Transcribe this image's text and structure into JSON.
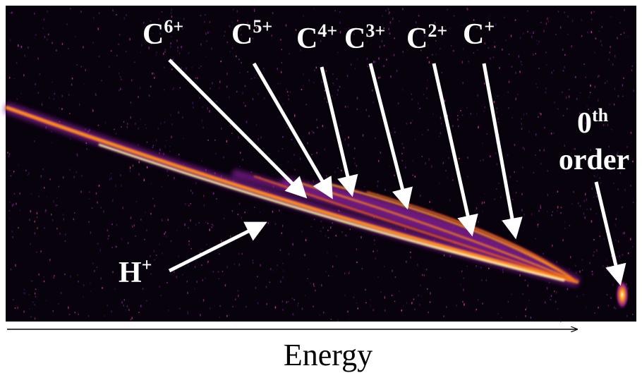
{
  "labels": [
    {
      "base": "C",
      "sup": "6+"
    },
    {
      "base": "C",
      "sup": "5+"
    },
    {
      "base": "C",
      "sup": "4+"
    },
    {
      "base": "C",
      "sup": "3+"
    },
    {
      "base": "C",
      "sup": "2+"
    },
    {
      "base": "C",
      "sup": "+"
    }
  ],
  "proton": {
    "base": "H",
    "sup": "+"
  },
  "zeroth_order": {
    "base": "0",
    "sup": "th",
    "line2": "order"
  },
  "axis_label": "Energy"
}
